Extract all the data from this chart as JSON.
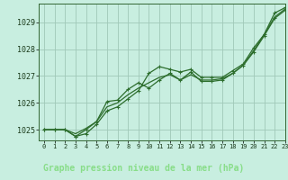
{
  "title": "Graphe pression niveau de la mer (hPa)",
  "fig_bg_color": "#4a7a4a",
  "plot_bg_color": "#c8eee0",
  "grid_color": "#a0c8b8",
  "line_color": "#2d6e2d",
  "xlabel_bg": "#2d5a2d",
  "xlabel_color": "#88cc88",
  "xlim": [
    -0.5,
    23
  ],
  "ylim": [
    1024.6,
    1029.7
  ],
  "xtick_labels": [
    "0",
    "1",
    "2",
    "3",
    "4",
    "5",
    "6",
    "7",
    "8",
    "9",
    "10",
    "11",
    "12",
    "13",
    "14",
    "15",
    "16",
    "17",
    "18",
    "19",
    "20",
    "21",
    "22",
    "23"
  ],
  "yticks": [
    1025,
    1026,
    1027,
    1028,
    1029
  ],
  "series_smooth": [
    1025.0,
    1025.0,
    1025.0,
    1024.85,
    1025.05,
    1025.3,
    1025.85,
    1026.0,
    1026.3,
    1026.55,
    1026.75,
    1026.95,
    1027.05,
    1026.85,
    1027.05,
    1026.85,
    1026.85,
    1026.9,
    1027.1,
    1027.4,
    1027.95,
    1028.55,
    1029.2,
    1029.5
  ],
  "series_markers1": [
    1025.0,
    1025.0,
    1025.0,
    1024.75,
    1024.85,
    1025.2,
    1025.7,
    1025.85,
    1026.15,
    1026.45,
    1027.1,
    1027.35,
    1027.25,
    1027.15,
    1027.25,
    1026.95,
    1026.95,
    1026.95,
    1027.2,
    1027.45,
    1028.05,
    1028.55,
    1029.35,
    1029.55
  ],
  "series_markers2": [
    1025.0,
    1025.0,
    1025.0,
    1024.75,
    1025.0,
    1025.3,
    1026.05,
    1026.1,
    1026.5,
    1026.75,
    1026.55,
    1026.85,
    1027.1,
    1026.85,
    1027.15,
    1026.8,
    1026.8,
    1026.85,
    1027.1,
    1027.4,
    1027.9,
    1028.5,
    1029.15,
    1029.45
  ]
}
